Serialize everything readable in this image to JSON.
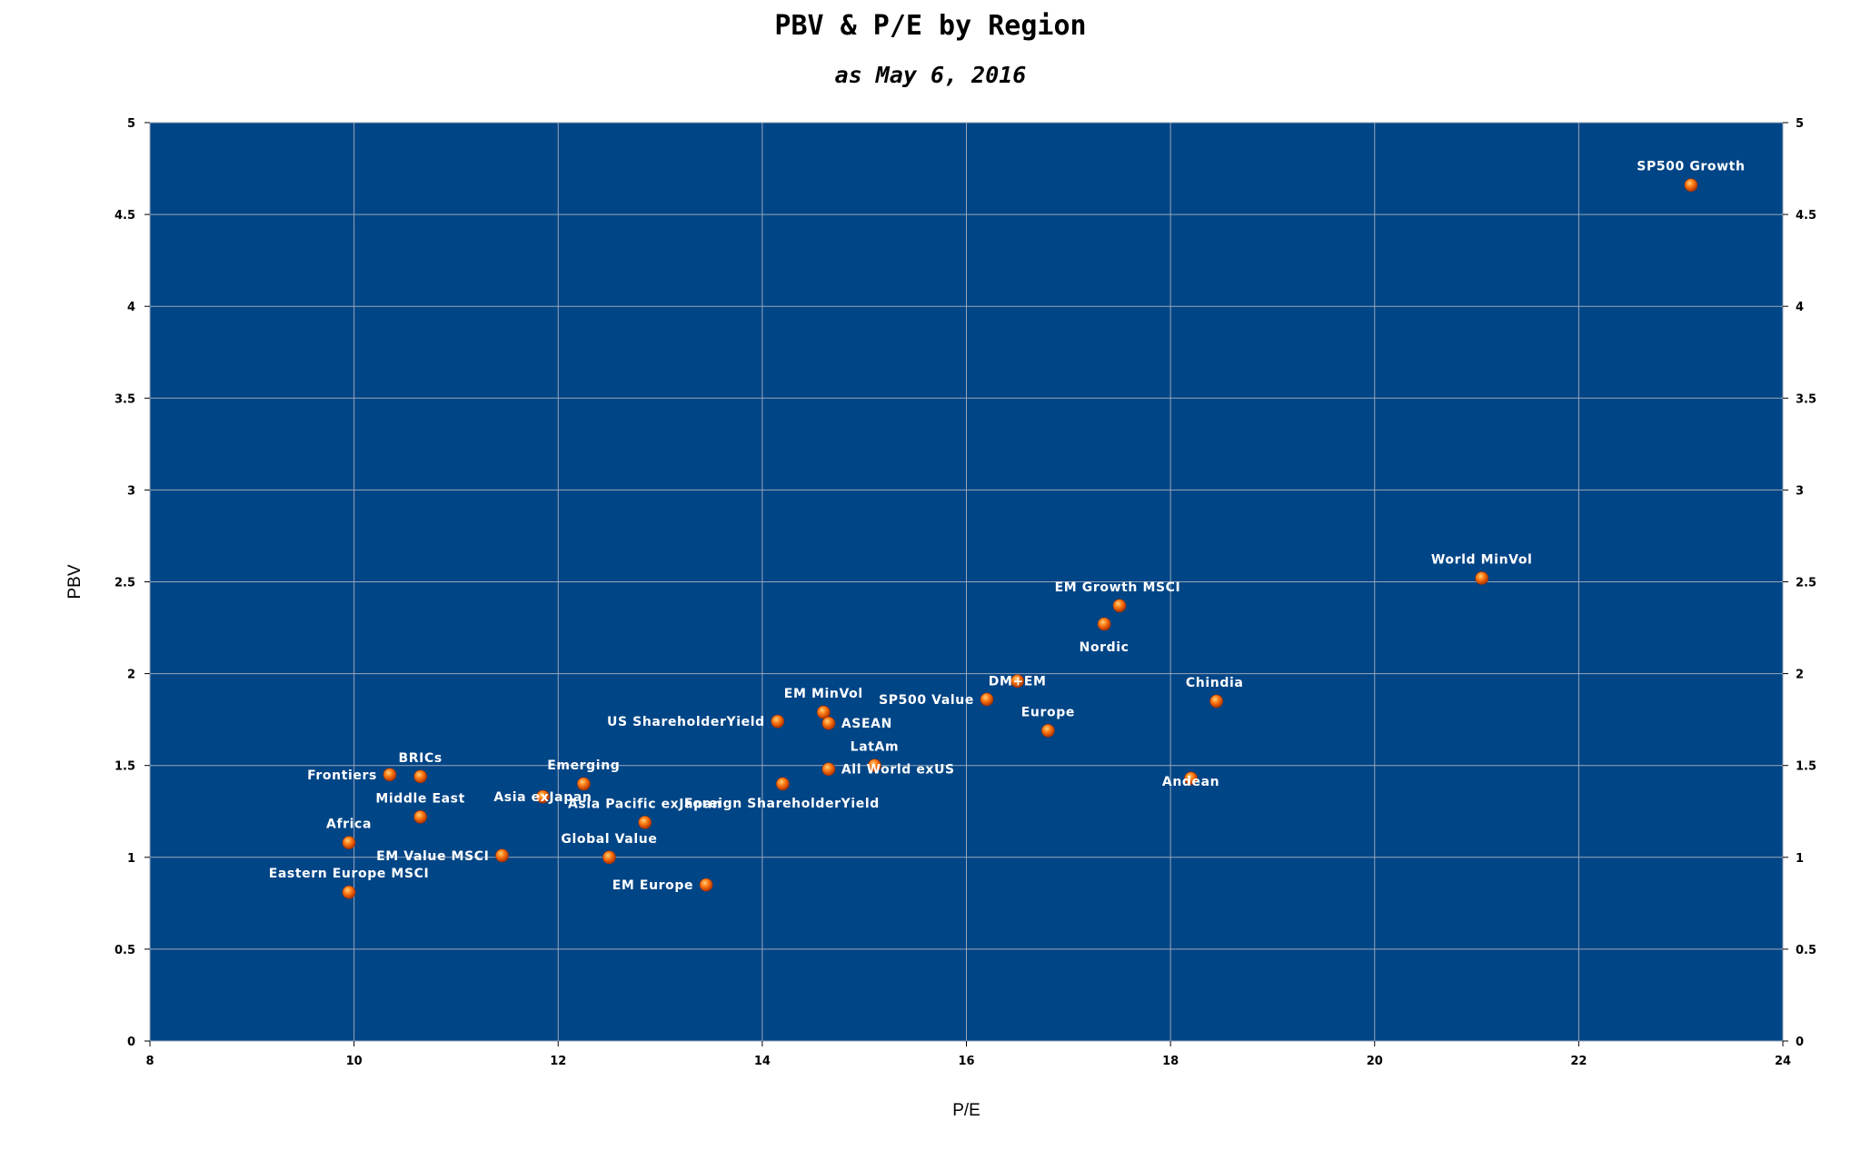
{
  "chart_data": {
    "type": "scatter",
    "title": "PBV & P/E by Region",
    "subtitle": "as May 6, 2016",
    "xlabel": "P/E",
    "ylabel": "PBV",
    "xlim": [
      8,
      24
    ],
    "ylim": [
      0,
      5
    ],
    "x_ticks": [
      "8",
      "10",
      "12",
      "14",
      "16",
      "18",
      "20",
      "22",
      "24"
    ],
    "y_ticks": [
      "0",
      "0.5",
      "1",
      "1.5",
      "2",
      "2.5",
      "3",
      "3.5",
      "4",
      "4.5",
      "5"
    ],
    "grid": true,
    "background_color": "#004586",
    "marker_color": "#ff6600",
    "points": [
      {
        "label": "SP500 Growth",
        "x": 23.1,
        "y": 4.66
      },
      {
        "label": "World MinVol",
        "x": 21.05,
        "y": 2.52
      },
      {
        "label": "EM Growth MSCI",
        "x": 17.5,
        "y": 2.37
      },
      {
        "label": "Nordic",
        "x": 17.35,
        "y": 2.27
      },
      {
        "label": "Chindia",
        "x": 18.45,
        "y": 1.85
      },
      {
        "label": "Andean",
        "x": 18.2,
        "y": 1.43
      },
      {
        "label": "DM+EM",
        "x": 16.5,
        "y": 1.96
      },
      {
        "label": "Europe",
        "x": 16.8,
        "y": 1.69
      },
      {
        "label": "SP500 Value",
        "x": 16.2,
        "y": 1.86
      },
      {
        "label": "EM MinVol",
        "x": 14.6,
        "y": 1.79
      },
      {
        "label": "ASEAN",
        "x": 14.65,
        "y": 1.73
      },
      {
        "label": "US ShareholderYield",
        "x": 14.15,
        "y": 1.74
      },
      {
        "label": "LatAm",
        "x": 15.1,
        "y": 1.5
      },
      {
        "label": "All World exUS",
        "x": 14.65,
        "y": 1.48
      },
      {
        "label": "Foreign ShareholderYield",
        "x": 14.2,
        "y": 1.4
      },
      {
        "label": "Emerging",
        "x": 12.25,
        "y": 1.4
      },
      {
        "label": "Asia exJapan",
        "x": 11.85,
        "y": 1.33
      },
      {
        "label": "Asia Pacific exJapan",
        "x": 12.85,
        "y": 1.19
      },
      {
        "label": "Global Value",
        "x": 12.5,
        "y": 1.0
      },
      {
        "label": "EM Europe",
        "x": 13.45,
        "y": 0.85
      },
      {
        "label": "EM Value MSCI",
        "x": 11.45,
        "y": 1.01
      },
      {
        "label": "BRICs",
        "x": 10.65,
        "y": 1.44
      },
      {
        "label": "Frontiers",
        "x": 10.35,
        "y": 1.45
      },
      {
        "label": "Middle East",
        "x": 10.65,
        "y": 1.22
      },
      {
        "label": "Africa",
        "x": 9.95,
        "y": 1.08
      },
      {
        "label": "Eastern Europe MSCI",
        "x": 9.95,
        "y": 0.81
      }
    ]
  }
}
